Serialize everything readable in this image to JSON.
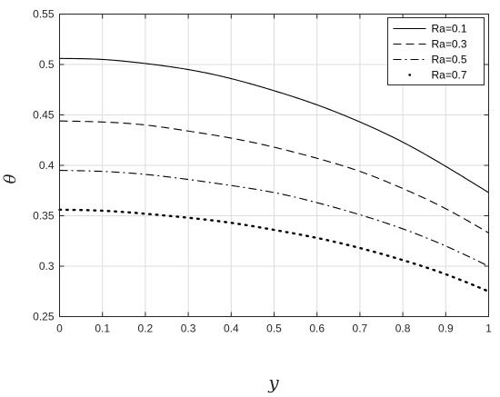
{
  "chart_data": {
    "type": "line",
    "title": "",
    "xlabel": "y",
    "ylabel": "θ",
    "xlim": [
      0,
      1
    ],
    "ylim": [
      0.25,
      0.55
    ],
    "grid": true,
    "legend_position": "top-right",
    "x_ticks": [
      0,
      0.1,
      0.2,
      0.3,
      0.4,
      0.5,
      0.6,
      0.7,
      0.8,
      0.9,
      1
    ],
    "x_tick_labels": [
      "0",
      "0.1",
      "0.2",
      "0.3",
      "0.4",
      "0.5",
      "0.6",
      "0.7",
      "0.8",
      "0.9",
      "1"
    ],
    "y_ticks": [
      0.25,
      0.3,
      0.35,
      0.4,
      0.45,
      0.5,
      0.55
    ],
    "y_tick_labels": [
      "0.25",
      "0.3",
      "0.35",
      "0.4",
      "0.45",
      "0.5",
      "0.55"
    ],
    "x": [
      0,
      0.1,
      0.2,
      0.3,
      0.4,
      0.5,
      0.6,
      0.7,
      0.8,
      0.9,
      1
    ],
    "series": [
      {
        "name": "Ra=0.1",
        "style": "solid",
        "color": "#000000",
        "values": [
          0.506,
          0.505,
          0.501,
          0.495,
          0.486,
          0.474,
          0.46,
          0.443,
          0.423,
          0.399,
          0.373
        ]
      },
      {
        "name": "Ra=0.3",
        "style": "dashed",
        "color": "#000000",
        "values": [
          0.444,
          0.443,
          0.44,
          0.434,
          0.427,
          0.418,
          0.407,
          0.394,
          0.377,
          0.357,
          0.333
        ]
      },
      {
        "name": "Ra=0.5",
        "style": "dashdot",
        "color": "#000000",
        "values": [
          0.395,
          0.394,
          0.391,
          0.386,
          0.38,
          0.373,
          0.363,
          0.351,
          0.337,
          0.32,
          0.3
        ]
      },
      {
        "name": "Ra=0.7",
        "style": "dotted",
        "color": "#000000",
        "values": [
          0.356,
          0.355,
          0.352,
          0.348,
          0.343,
          0.336,
          0.328,
          0.318,
          0.306,
          0.292,
          0.275
        ]
      }
    ]
  }
}
